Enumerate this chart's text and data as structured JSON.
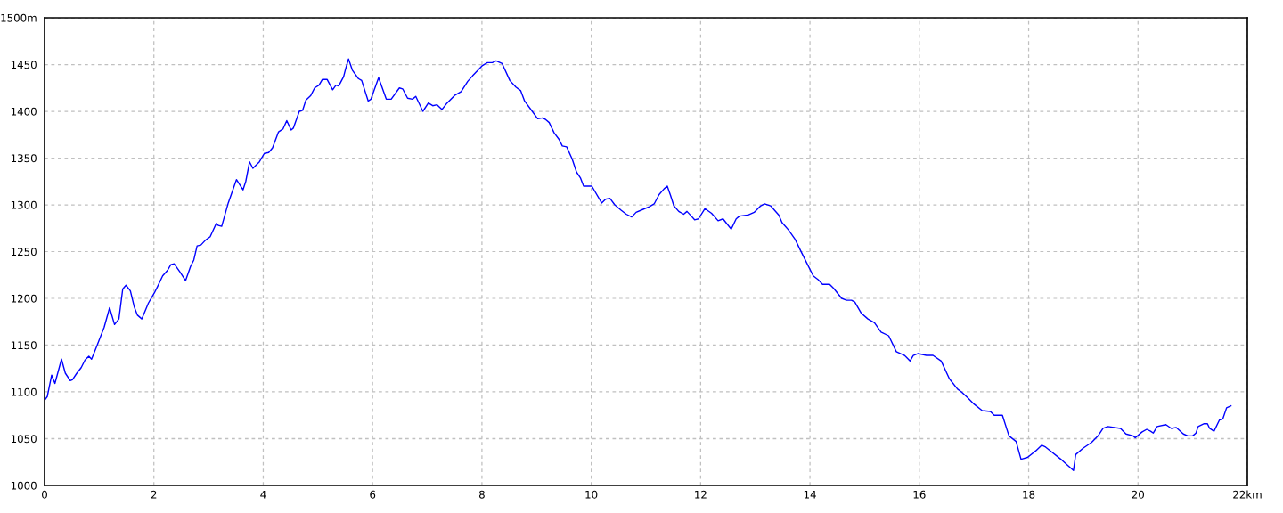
{
  "chart_data": {
    "type": "line",
    "x": [
      0,
      0.05,
      0.13,
      0.19,
      0.31,
      0.38,
      0.47,
      0.51,
      0.59,
      0.67,
      0.74,
      0.81,
      0.86,
      0.95,
      1.09,
      1.19,
      1.28,
      1.36,
      1.43,
      1.49,
      1.57,
      1.64,
      1.7,
      1.78,
      1.9,
      2.01,
      2.07,
      2.16,
      2.25,
      2.31,
      2.37,
      2.48,
      2.58,
      2.67,
      2.73,
      2.79,
      2.86,
      2.94,
      3.03,
      3.14,
      3.18,
      3.24,
      3.36,
      3.51,
      3.63,
      3.68,
      3.75,
      3.81,
      3.93,
      4.02,
      4.1,
      4.17,
      4.28,
      4.36,
      4.43,
      4.51,
      4.55,
      4.66,
      4.72,
      4.78,
      4.87,
      4.94,
      5.02,
      5.08,
      5.17,
      5.27,
      5.33,
      5.38,
      5.47,
      5.5,
      5.56,
      5.63,
      5.74,
      5.8,
      5.92,
      5.97,
      6.11,
      6.25,
      6.34,
      6.49,
      6.55,
      6.64,
      6.73,
      6.79,
      6.92,
      7.02,
      7.1,
      7.18,
      7.27,
      7.35,
      7.5,
      7.62,
      7.74,
      7.83,
      8.01,
      8.1,
      8.19,
      8.26,
      8.37,
      8.51,
      8.62,
      8.71,
      8.78,
      8.92,
      9.02,
      9.11,
      9.17,
      9.23,
      9.32,
      9.41,
      9.47,
      9.55,
      9.65,
      9.73,
      9.8,
      9.86,
      10.01,
      10.19,
      10.26,
      10.34,
      10.43,
      10.55,
      10.64,
      10.74,
      10.82,
      10.94,
      11.06,
      11.15,
      11.24,
      11.33,
      11.39,
      11.45,
      11.51,
      11.6,
      11.69,
      11.75,
      11.83,
      11.89,
      11.96,
      12.08,
      12.2,
      12.32,
      12.41,
      12.49,
      12.56,
      12.65,
      12.71,
      12.86,
      12.98,
      13.1,
      13.17,
      13.28,
      13.43,
      13.49,
      13.61,
      13.73,
      13.82,
      13.94,
      14.06,
      14.15,
      14.23,
      14.36,
      14.43,
      14.58,
      14.67,
      14.76,
      14.82,
      14.94,
      15.06,
      15.18,
      15.3,
      15.44,
      15.58,
      15.73,
      15.83,
      15.89,
      15.98,
      16.13,
      16.25,
      16.4,
      16.55,
      16.7,
      16.77,
      16.88,
      17.0,
      17.15,
      17.3,
      17.37,
      17.52,
      17.64,
      17.77,
      17.86,
      17.98,
      18.13,
      18.24,
      18.31,
      18.61,
      18.82,
      18.86,
      19.0,
      19.15,
      19.27,
      19.36,
      19.45,
      19.68,
      19.78,
      19.91,
      19.95,
      20.07,
      20.16,
      20.23,
      20.28,
      20.35,
      20.51,
      20.61,
      20.7,
      20.83,
      20.91,
      21.0,
      21.06,
      21.1,
      21.21,
      21.27,
      21.31,
      21.39,
      21.49,
      21.55,
      21.62,
      21.7
    ],
    "values": [
      1091,
      1095,
      1118,
      1109,
      1135,
      1120,
      1112,
      1113,
      1120,
      1126,
      1134,
      1138,
      1135,
      1148,
      1169,
      1190,
      1172,
      1178,
      1210,
      1214,
      1208,
      1191,
      1182,
      1178,
      1195,
      1206,
      1213,
      1224,
      1230,
      1236,
      1237,
      1228,
      1219,
      1234,
      1241,
      1256,
      1257,
      1262,
      1266,
      1280,
      1278,
      1277,
      1302,
      1327,
      1316,
      1325,
      1346,
      1339,
      1346,
      1355,
      1356,
      1361,
      1378,
      1381,
      1390,
      1380,
      1382,
      1400,
      1401,
      1412,
      1417,
      1425,
      1428,
      1434,
      1434,
      1423,
      1428,
      1427,
      1437,
      1444,
      1456,
      1444,
      1435,
      1433,
      1411,
      1413,
      1436,
      1413,
      1413,
      1425,
      1424,
      1414,
      1413,
      1416,
      1400,
      1409,
      1406,
      1407,
      1402,
      1408,
      1417,
      1421,
      1432,
      1438,
      1449,
      1452,
      1452,
      1454,
      1451,
      1433,
      1426,
      1422,
      1411,
      1400,
      1392,
      1393,
      1391,
      1388,
      1377,
      1370,
      1363,
      1362,
      1349,
      1335,
      1329,
      1320,
      1320,
      1302,
      1306,
      1307,
      1300,
      1294,
      1290,
      1287,
      1292,
      1295,
      1298,
      1301,
      1311,
      1317,
      1320,
      1310,
      1299,
      1293,
      1290,
      1293,
      1288,
      1284,
      1285,
      1296,
      1291,
      1283,
      1285,
      1279,
      1274,
      1285,
      1288,
      1289,
      1292,
      1299,
      1301,
      1299,
      1289,
      1281,
      1273,
      1263,
      1252,
      1238,
      1224,
      1220,
      1215,
      1215,
      1211,
      1200,
      1198,
      1198,
      1196,
      1184,
      1178,
      1174,
      1164,
      1160,
      1143,
      1139,
      1133,
      1139,
      1141,
      1139,
      1139,
      1133,
      1114,
      1103,
      1100,
      1094,
      1087,
      1080,
      1079,
      1075,
      1075,
      1053,
      1047,
      1028,
      1030,
      1037,
      1043,
      1041,
      1027,
      1016,
      1033,
      1040,
      1046,
      1053,
      1061,
      1063,
      1061,
      1055,
      1053,
      1051,
      1057,
      1060,
      1058,
      1056,
      1063,
      1065,
      1061,
      1062,
      1055,
      1053,
      1053,
      1056,
      1063,
      1066,
      1066,
      1061,
      1058,
      1070,
      1071,
      1083,
      1085
    ],
    "color": "#0000ff",
    "xlim": [
      0,
      22
    ],
    "xticks": [
      0,
      2,
      4,
      6,
      8,
      10,
      12,
      14,
      16,
      18,
      20,
      {
        "value": 22,
        "label": "22km"
      }
    ],
    "ylim": [
      1000,
      1500
    ],
    "yticks": [
      1000,
      1050,
      1100,
      1150,
      1200,
      1250,
      1300,
      1350,
      1400,
      1450,
      {
        "value": 1500,
        "label": "1500m"
      }
    ],
    "grid": true
  }
}
